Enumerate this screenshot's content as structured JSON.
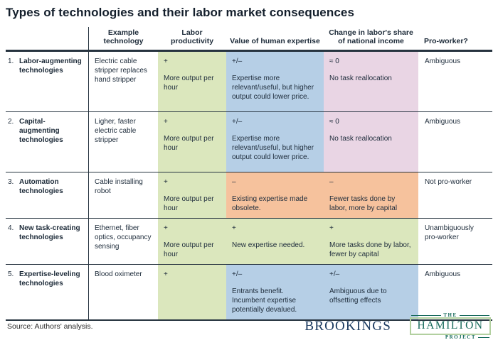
{
  "title": "Types of technologies and their labor market consequences",
  "colors": {
    "green": "#dbe7bd",
    "blue": "#b6cfe6",
    "pink": "#e9d5e4",
    "orange": "#f6c29d",
    "rule": "#26333f",
    "brookings_navy": "#1b3a60",
    "hamilton_green": "#15695a",
    "hamilton_border": "#b2d0a0"
  },
  "chart_data": {
    "type": "table",
    "title": "Types of technologies and their labor market consequences",
    "columns": [
      "Example technology",
      "Labor productivity",
      "Value of human expertise",
      "Change in labor's share of national income",
      "Pro-worker?"
    ],
    "rows": [
      {
        "num": "1.",
        "name": "Labor-augmenting technologies",
        "example": "Electric cable stripper replaces hand stripper",
        "labor_productivity": {
          "sign": "+",
          "note": "More output per hour",
          "tone": "green"
        },
        "human_expertise": {
          "sign": "+/–",
          "note": "Expertise more relevant/useful, but higher output could lower price.",
          "tone": "blue"
        },
        "labor_share": {
          "sign": "≈ 0",
          "note": "No task reallocation",
          "tone": "pink"
        },
        "pro_worker": "Ambiguous"
      },
      {
        "num": "2.",
        "name": "Capital-augmenting technologies",
        "example": "Ligher, faster electric cable stripper",
        "labor_productivity": {
          "sign": "+",
          "note": "More output per hour",
          "tone": "green"
        },
        "human_expertise": {
          "sign": "+/–",
          "note": "Expertise more relevant/useful, but higher output could lower price.",
          "tone": "blue"
        },
        "labor_share": {
          "sign": "≈ 0",
          "note": "No task reallocation",
          "tone": "pink"
        },
        "pro_worker": "Ambiguous"
      },
      {
        "num": "3.",
        "name": "Automation technologies",
        "example": "Cable installing robot",
        "labor_productivity": {
          "sign": "+",
          "note": "More output per hour",
          "tone": "green"
        },
        "human_expertise": {
          "sign": "–",
          "note": "Existing expertise made obsolete.",
          "tone": "orange"
        },
        "labor_share": {
          "sign": "–",
          "note": "Fewer tasks done by labor, more by capital",
          "tone": "orange"
        },
        "pro_worker": "Not pro-worker"
      },
      {
        "num": "4.",
        "name": "New task-creating technologies",
        "example": "Ethernet, fiber optics, occupancy sensing",
        "labor_productivity": {
          "sign": "+",
          "note": "More output per hour",
          "tone": "green"
        },
        "human_expertise": {
          "sign": "+",
          "note": "New expertise needed.",
          "tone": "green"
        },
        "labor_share": {
          "sign": "+",
          "note": "More tasks done by labor, fewer by capital",
          "tone": "green"
        },
        "pro_worker": "Unambiguously pro-worker"
      },
      {
        "num": "5.",
        "name": "Expertise-leveling technologies",
        "example": "Blood oximeter",
        "labor_productivity": {
          "sign": "+",
          "note": "",
          "tone": "green"
        },
        "human_expertise": {
          "sign": "+/–",
          "note": "Entrants benefit. Incumbent expertise potentially devalued.",
          "tone": "blue"
        },
        "labor_share": {
          "sign": "+/–",
          "note": "Ambiguous due to offsetting effects",
          "tone": "blue"
        },
        "pro_worker": "Ambiguous"
      }
    ]
  },
  "footer": {
    "source": "Source: Authors' analysis.",
    "brookings_wordmark": "BROOKINGS",
    "hamilton": {
      "the": "THE",
      "name": "HAMILTON",
      "project": "PROJECT"
    }
  }
}
